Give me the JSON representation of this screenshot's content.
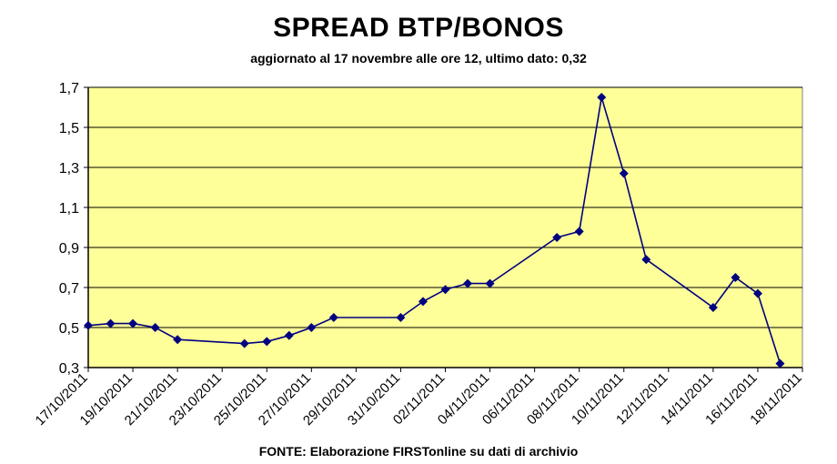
{
  "chart_data": {
    "type": "line",
    "title": "SPREAD BTP/BONOS",
    "subtitle": "aggiornato al 17 novembre alle ore 12, ultimo dato: 0,32",
    "source": "FONTE: Elaborazione FIRSTonline su dati di archivio",
    "xlabel": "",
    "ylabel": "",
    "xlim": [
      "17/10/2011",
      "18/11/2011"
    ],
    "ylim": [
      0.3,
      1.7
    ],
    "grid": true,
    "legend": "none",
    "x_tick_labels": [
      "17/10/2011",
      "19/10/2011",
      "21/10/2011",
      "23/10/2011",
      "25/10/2011",
      "27/10/2011",
      "29/10/2011",
      "31/10/2011",
      "02/11/2011",
      "04/11/2011",
      "06/11/2011",
      "08/11/2011",
      "10/11/2011",
      "12/11/2011",
      "14/11/2011",
      "16/11/2011",
      "18/11/2011"
    ],
    "y_tick_labels": [
      "0,3",
      "0,5",
      "0,7",
      "0,9",
      "1,1",
      "1,3",
      "1,5",
      "1,7"
    ],
    "y_ticks": [
      0.3,
      0.5,
      0.7,
      0.9,
      1.1,
      1.3,
      1.5,
      1.7
    ],
    "series": [
      {
        "points": [
          {
            "x": "17/10/2011",
            "y": 0.51
          },
          {
            "x": "18/10/2011",
            "y": 0.52
          },
          {
            "x": "19/10/2011",
            "y": 0.52
          },
          {
            "x": "20/10/2011",
            "y": 0.5
          },
          {
            "x": "21/10/2011",
            "y": 0.44
          },
          {
            "x": "24/10/2011",
            "y": 0.42
          },
          {
            "x": "25/10/2011",
            "y": 0.43
          },
          {
            "x": "26/10/2011",
            "y": 0.46
          },
          {
            "x": "27/10/2011",
            "y": 0.5
          },
          {
            "x": "28/10/2011",
            "y": 0.55
          },
          {
            "x": "31/10/2011",
            "y": 0.55
          },
          {
            "x": "01/11/2011",
            "y": 0.63
          },
          {
            "x": "02/11/2011",
            "y": 0.69
          },
          {
            "x": "03/11/2011",
            "y": 0.72
          },
          {
            "x": "04/11/2011",
            "y": 0.72
          },
          {
            "x": "07/11/2011",
            "y": 0.95
          },
          {
            "x": "08/11/2011",
            "y": 0.98
          },
          {
            "x": "09/11/2011",
            "y": 1.65
          },
          {
            "x": "10/11/2011",
            "y": 1.27
          },
          {
            "x": "11/11/2011",
            "y": 0.84
          },
          {
            "x": "14/11/2011",
            "y": 0.6
          },
          {
            "x": "15/11/2011",
            "y": 0.75
          },
          {
            "x": "16/11/2011",
            "y": 0.67
          },
          {
            "x": "17/11/2011",
            "y": 0.32
          }
        ]
      }
    ],
    "colors": {
      "plot_background": "#ffff99",
      "line": "#000080",
      "gridline": "#000000"
    }
  }
}
